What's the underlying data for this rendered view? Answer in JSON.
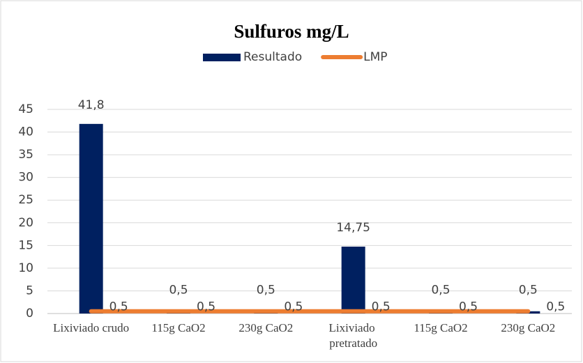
{
  "chart_data": {
    "type": "bar_line",
    "title": "Sulfuros mg/L",
    "categories": [
      "Lixiviado crudo",
      "115g CaO2",
      "230g CaO2",
      "Lixiviado pretratado",
      "115g CaO2",
      "230g CaO2"
    ],
    "series": [
      {
        "name": "Resultado",
        "type": "bar",
        "color": "#002060",
        "values": [
          41.8,
          0.5,
          0.5,
          14.75,
          0.5,
          0.5
        ],
        "value_labels": [
          "41,8",
          "0,5",
          "0,5",
          "14,75",
          "0,5",
          "0,5"
        ]
      },
      {
        "name": "LMP",
        "type": "line",
        "color": "#ed7d31",
        "values": [
          0.5,
          0.5,
          0.5,
          0.5,
          0.5,
          0.5
        ],
        "value_labels": [
          "0,5",
          "0,5",
          "0,5",
          "0,5",
          "0,5",
          "0,5"
        ]
      }
    ],
    "ylim": [
      0,
      45
    ],
    "yticks": [
      0,
      5,
      10,
      15,
      20,
      25,
      30,
      35,
      40,
      45
    ],
    "grid": true,
    "legend": "top"
  }
}
